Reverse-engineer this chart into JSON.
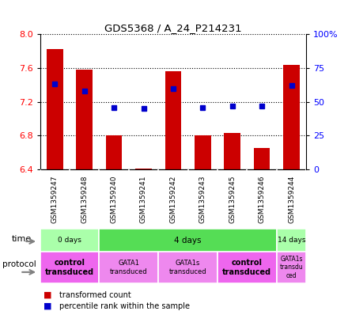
{
  "title": "GDS5368 / A_24_P214231",
  "samples": [
    "GSM1359247",
    "GSM1359248",
    "GSM1359240",
    "GSM1359241",
    "GSM1359242",
    "GSM1359243",
    "GSM1359245",
    "GSM1359246",
    "GSM1359244"
  ],
  "transformed_counts": [
    7.82,
    7.58,
    6.8,
    6.41,
    7.56,
    6.8,
    6.83,
    6.65,
    7.64
  ],
  "percentile_ranks": [
    63,
    58,
    46,
    45,
    60,
    46,
    47,
    47,
    62
  ],
  "ymin": 6.4,
  "ymax": 8.0,
  "yticks": [
    6.4,
    6.8,
    7.2,
    7.6,
    8.0
  ],
  "right_yticks": [
    0,
    25,
    50,
    75,
    100
  ],
  "bar_color": "#cc0000",
  "dot_color": "#0000cc",
  "time_groups": [
    {
      "label": "0 days",
      "start": 0,
      "end": 2,
      "color": "#aaffaa"
    },
    {
      "label": "4 days",
      "start": 2,
      "end": 8,
      "color": "#55dd55"
    },
    {
      "label": "14 days",
      "start": 8,
      "end": 9,
      "color": "#aaffaa"
    }
  ],
  "protocol_groups": [
    {
      "label": "control\ntransduced",
      "start": 0,
      "end": 2,
      "color": "#ee66ee",
      "bold": true,
      "fontsize": 7
    },
    {
      "label": "GATA1\ntransduced",
      "start": 2,
      "end": 4,
      "color": "#ee88ee",
      "bold": false,
      "fontsize": 6
    },
    {
      "label": "GATA1s\ntransduced",
      "start": 4,
      "end": 6,
      "color": "#ee88ee",
      "bold": false,
      "fontsize": 6
    },
    {
      "label": "control\ntransduced",
      "start": 6,
      "end": 8,
      "color": "#ee66ee",
      "bold": true,
      "fontsize": 7
    },
    {
      "label": "GATA1s\ntransdu\nced",
      "start": 8,
      "end": 9,
      "color": "#ee88ee",
      "bold": false,
      "fontsize": 5.5
    }
  ],
  "bar_bottom": 6.4,
  "background_color": "#ffffff"
}
